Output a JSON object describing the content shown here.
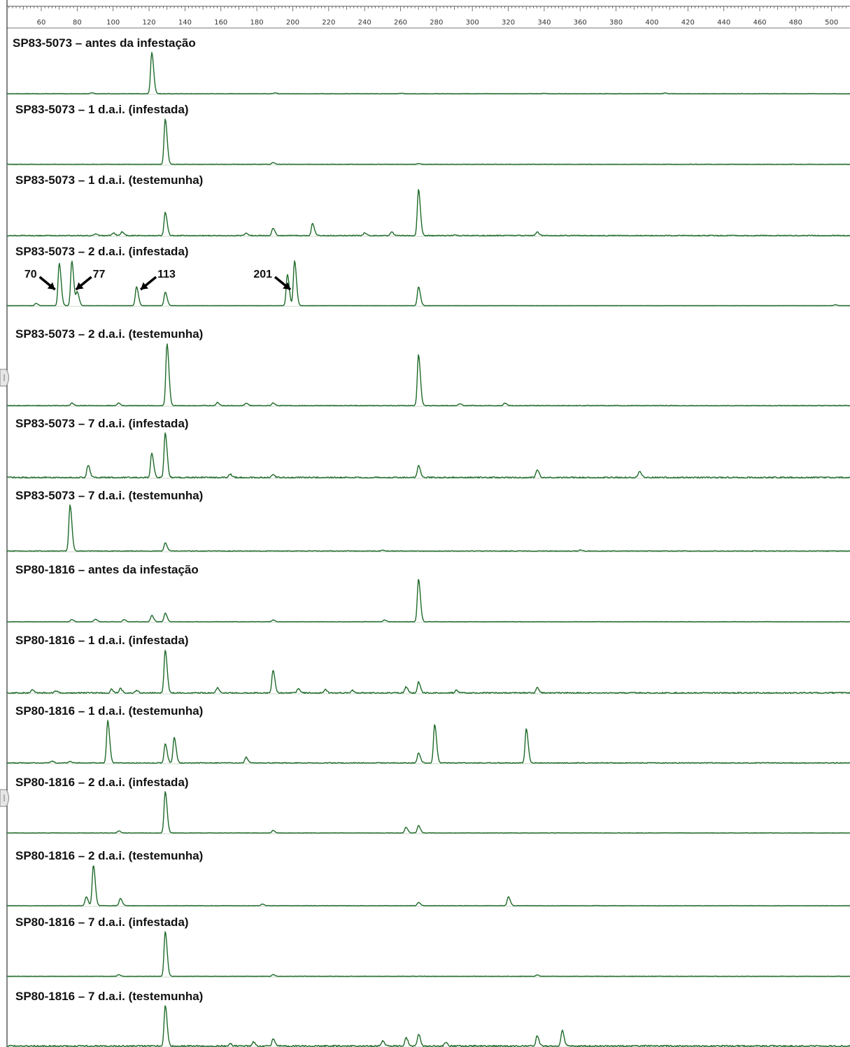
{
  "chart_data": {
    "type": "line",
    "xlim": [
      40,
      510
    ],
    "x_ticks": [
      60,
      80,
      100,
      120,
      140,
      160,
      180,
      200,
      220,
      240,
      260,
      280,
      300,
      320,
      340,
      360,
      380,
      400,
      420,
      440,
      460,
      480,
      500
    ],
    "x_tick_labels": [
      "60",
      "80",
      "100",
      "120",
      "140",
      "160",
      "180",
      "200",
      "220",
      "240",
      "260",
      "280",
      "300",
      "320",
      "340",
      "360",
      "380",
      "400",
      "420",
      "440",
      "460",
      "480",
      "500"
    ],
    "line_color": "#1f6b2a",
    "annotation_color": "#000000",
    "series": [
      {
        "label": "SP83-5073 – antes da infestação",
        "peaks": [
          [
            121.5,
            1.0
          ],
          [
            88,
            0.02
          ],
          [
            190,
            0.02
          ],
          [
            260,
            0.01
          ],
          [
            340,
            0.01
          ],
          [
            407,
            0.015
          ]
        ],
        "noise": 0.01
      },
      {
        "label": "SP83-5073 – 1 d.a.i. (infestada)",
        "peaks": [
          [
            129,
            1.0
          ],
          [
            189,
            0.04
          ],
          [
            270,
            0.02
          ]
        ],
        "noise": 0.01
      },
      {
        "label": "SP83-5073 – 1 d.a.i. (testemunha)",
        "peaks": [
          [
            90,
            0.03
          ],
          [
            100,
            0.06
          ],
          [
            105,
            0.08
          ],
          [
            129,
            0.5
          ],
          [
            174,
            0.05
          ],
          [
            189,
            0.16
          ],
          [
            211,
            0.26
          ],
          [
            240,
            0.06
          ],
          [
            255,
            0.08
          ],
          [
            270,
            1.0
          ],
          [
            290,
            0.02
          ],
          [
            336,
            0.08
          ]
        ],
        "noise": 0.02
      },
      {
        "label": "SP83-5073 – 2 d.a.i. (infestada)",
        "peaks": [
          [
            57,
            0.05
          ],
          [
            70,
            0.95
          ],
          [
            77,
            1.0
          ],
          [
            80,
            0.3
          ],
          [
            113,
            0.42
          ],
          [
            129,
            0.3
          ],
          [
            197,
            0.7
          ],
          [
            201,
            1.0
          ],
          [
            270,
            0.42
          ],
          [
            502,
            0.02
          ]
        ],
        "noise": 0.006
      },
      {
        "label": "SP83-5073 – 2 d.a.i. (testemunha)",
        "peaks": [
          [
            77,
            0.04
          ],
          [
            103,
            0.04
          ],
          [
            130,
            1.0
          ],
          [
            158,
            0.05
          ],
          [
            174,
            0.04
          ],
          [
            189,
            0.04
          ],
          [
            270,
            0.82
          ],
          [
            293,
            0.03
          ],
          [
            318,
            0.04
          ]
        ],
        "noise": 0.01
      },
      {
        "label": "SP83-5073 – 7 d.a.i. (infestada)",
        "peaks": [
          [
            86,
            0.28
          ],
          [
            121.5,
            0.55
          ],
          [
            129,
            1.0
          ],
          [
            165,
            0.08
          ],
          [
            189,
            0.06
          ],
          [
            270,
            0.28
          ],
          [
            336,
            0.18
          ],
          [
            393,
            0.14
          ]
        ],
        "noise": 0.03
      },
      {
        "label": "SP83-5073 – 7 d.a.i. (testemunha)",
        "peaks": [
          [
            76,
            1.0
          ],
          [
            129,
            0.18
          ],
          [
            250,
            0.02
          ],
          [
            360,
            0.02
          ]
        ],
        "noise": 0.015
      },
      {
        "label": "SP80-1816 – antes da infestação",
        "peaks": [
          [
            77,
            0.05
          ],
          [
            90,
            0.06
          ],
          [
            106,
            0.05
          ],
          [
            121.5,
            0.15
          ],
          [
            129,
            0.2
          ],
          [
            189,
            0.04
          ],
          [
            251,
            0.04
          ],
          [
            270,
            1.0
          ]
        ],
        "noise": 0.01
      },
      {
        "label": "SP80-1816 – 1 d.a.i. (infestada)",
        "peaks": [
          [
            55,
            0.08
          ],
          [
            68,
            0.05
          ],
          [
            99,
            0.08
          ],
          [
            104,
            0.1
          ],
          [
            113,
            0.06
          ],
          [
            129,
            1.0
          ],
          [
            158,
            0.12
          ],
          [
            189,
            0.52
          ],
          [
            203,
            0.1
          ],
          [
            218,
            0.08
          ],
          [
            233,
            0.06
          ],
          [
            263,
            0.14
          ],
          [
            270,
            0.26
          ],
          [
            291,
            0.06
          ],
          [
            336,
            0.12
          ]
        ],
        "noise": 0.03
      },
      {
        "label": "SP80-1816 – 1 d.a.i. (testemunha)",
        "peaks": [
          [
            66,
            0.04
          ],
          [
            76,
            0.04
          ],
          [
            97,
            1.0
          ],
          [
            129,
            0.45
          ],
          [
            134,
            0.6
          ],
          [
            174,
            0.14
          ],
          [
            270,
            0.24
          ],
          [
            279,
            0.9
          ],
          [
            330,
            0.8
          ]
        ],
        "noise": 0.02
      },
      {
        "label": "SP80-1816 – 2 d.a.i. (infestada)",
        "peaks": [
          [
            103,
            0.05
          ],
          [
            129,
            1.0
          ],
          [
            189,
            0.06
          ],
          [
            263,
            0.14
          ],
          [
            270,
            0.18
          ]
        ],
        "noise": 0.01
      },
      {
        "label": "SP80-1816 – 2 d.a.i. (testemunha)",
        "peaks": [
          [
            85,
            0.22
          ],
          [
            89,
            1.0
          ],
          [
            104,
            0.18
          ],
          [
            183,
            0.04
          ],
          [
            270,
            0.08
          ],
          [
            320,
            0.22
          ]
        ],
        "noise": 0.01
      },
      {
        "label": "SP80-1816 – 7 d.a.i. (infestada)",
        "peaks": [
          [
            103,
            0.04
          ],
          [
            129,
            1.0
          ],
          [
            189,
            0.04
          ],
          [
            336,
            0.03
          ]
        ],
        "noise": 0.01
      },
      {
        "label": "SP80-1816 – 7 d.a.i. (testemunha)",
        "peaks": [
          [
            129,
            1.0
          ],
          [
            165,
            0.06
          ],
          [
            178,
            0.1
          ],
          [
            189,
            0.18
          ],
          [
            250,
            0.12
          ],
          [
            263,
            0.22
          ],
          [
            270,
            0.3
          ],
          [
            285,
            0.1
          ],
          [
            336,
            0.26
          ],
          [
            350,
            0.4
          ]
        ],
        "noise": 0.04
      }
    ],
    "annotations": [
      {
        "series_index": 3,
        "text": "70",
        "x": 70,
        "arrow_from": "left"
      },
      {
        "series_index": 3,
        "text": "77",
        "x": 77,
        "arrow_from": "right"
      },
      {
        "series_index": 3,
        "text": "113",
        "x": 113,
        "arrow_from": "right"
      },
      {
        "series_index": 3,
        "text": "201",
        "x": 201,
        "arrow_from": "left"
      }
    ]
  }
}
